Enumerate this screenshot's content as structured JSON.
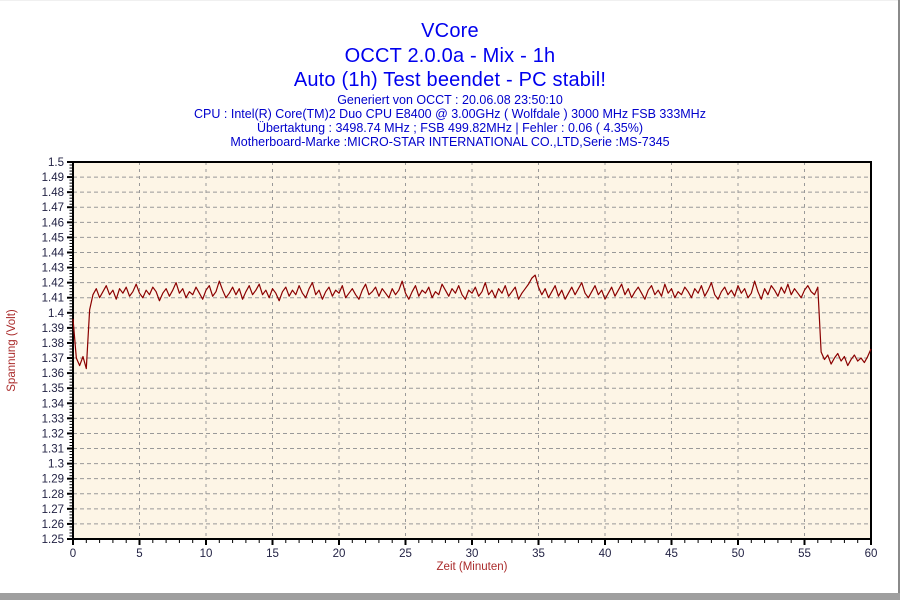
{
  "window": {
    "bottom_bar_color": "#9f9f9f",
    "right_border_color": "#8a8a8a"
  },
  "header": {
    "title": "VCore",
    "subtitle": "OCCT 2.0.0a - Mix - 1h",
    "status": "Auto (1h) Test beendet - PC stabil!",
    "title_color": "#0000ee",
    "info_color": "#0000cc",
    "info_lines": [
      "Generiert von OCCT : 20.06.08 23:50:10",
      "CPU : Intel(R) Core(TM)2 Duo CPU E8400 @ 3.00GHz ( Wolfdale ) 3000 MHz FSB 333MHz",
      "Übertaktung : 3498.74 MHz ; FSB 499.82MHz | Fehler : 0.06 ( 4.35%)",
      "Motherboard-Marke :MICRO-STAR INTERNATIONAL CO.,LTD,Serie :MS-7345"
    ]
  },
  "chart_data": {
    "type": "line",
    "title": "VCore",
    "xlabel": "Zeit (Minuten)",
    "ylabel": "Spannung (Volt)",
    "xlim": [
      0,
      60
    ],
    "ylim": [
      1.25,
      1.5
    ],
    "x_major_step": 5,
    "x_minor_step": 1,
    "y_major_step": 0.01,
    "y_minor_step": 0.002,
    "x_tick_labels": [
      "0",
      "5",
      "10",
      "15",
      "20",
      "25",
      "30",
      "35",
      "40",
      "45",
      "50",
      "55",
      "60"
    ],
    "y_tick_labels": [
      "1.5",
      "1.49",
      "1.48",
      "1.47",
      "1.46",
      "1.45",
      "1.44",
      "1.43",
      "1.42",
      "1.41",
      "1.4",
      "1.39",
      "1.38",
      "1.37",
      "1.36",
      "1.35",
      "1.34",
      "1.33",
      "1.32",
      "1.31",
      "1.3",
      "1.29",
      "1.28",
      "1.27",
      "1.26",
      "1.25"
    ],
    "grid": "dashed",
    "legend": "none",
    "plot_bg": "#fdf5e6",
    "grid_color": "#999999",
    "axis_color": "#000000",
    "line_color": "#8b0000",
    "tick_label_color": "#222244",
    "axis_label_color": "#aa2b2b",
    "series": [
      {
        "name": "VCore",
        "x_start": 0,
        "dt": 0.25,
        "values": [
          1.396,
          1.37,
          1.365,
          1.371,
          1.363,
          1.402,
          1.412,
          1.416,
          1.41,
          1.414,
          1.418,
          1.412,
          1.415,
          1.409,
          1.416,
          1.413,
          1.417,
          1.411,
          1.414,
          1.419,
          1.413,
          1.41,
          1.415,
          1.412,
          1.417,
          1.414,
          1.408,
          1.413,
          1.416,
          1.411,
          1.415,
          1.42,
          1.413,
          1.416,
          1.41,
          1.414,
          1.412,
          1.417,
          1.413,
          1.409,
          1.415,
          1.418,
          1.411,
          1.414,
          1.421,
          1.415,
          1.41,
          1.413,
          1.417,
          1.412,
          1.416,
          1.409,
          1.414,
          1.418,
          1.412,
          1.415,
          1.419,
          1.412,
          1.415,
          1.41,
          1.416,
          1.413,
          1.408,
          1.414,
          1.417,
          1.411,
          1.415,
          1.412,
          1.418,
          1.413,
          1.41,
          1.416,
          1.42,
          1.412,
          1.415,
          1.409,
          1.414,
          1.417,
          1.411,
          1.415,
          1.413,
          1.418,
          1.41,
          1.413,
          1.416,
          1.412,
          1.409,
          1.415,
          1.419,
          1.412,
          1.414,
          1.417,
          1.411,
          1.416,
          1.413,
          1.41,
          1.416,
          1.412,
          1.415,
          1.421,
          1.413,
          1.409,
          1.414,
          1.418,
          1.411,
          1.415,
          1.413,
          1.417,
          1.41,
          1.414,
          1.412,
          1.419,
          1.415,
          1.411,
          1.416,
          1.413,
          1.418,
          1.412,
          1.409,
          1.415,
          1.413,
          1.417,
          1.411,
          1.414,
          1.42,
          1.412,
          1.415,
          1.41,
          1.416,
          1.413,
          1.418,
          1.411,
          1.414,
          1.417,
          1.409,
          1.413,
          1.416,
          1.419,
          1.423,
          1.425,
          1.417,
          1.412,
          1.416,
          1.41,
          1.414,
          1.418,
          1.411,
          1.415,
          1.409,
          1.413,
          1.417,
          1.412,
          1.416,
          1.42,
          1.413,
          1.41,
          1.414,
          1.418,
          1.412,
          1.415,
          1.409,
          1.413,
          1.417,
          1.411,
          1.415,
          1.419,
          1.412,
          1.416,
          1.41,
          1.414,
          1.417,
          1.413,
          1.409,
          1.415,
          1.418,
          1.412,
          1.415,
          1.411,
          1.419,
          1.413,
          1.416,
          1.41,
          1.414,
          1.412,
          1.417,
          1.414,
          1.41,
          1.416,
          1.413,
          1.418,
          1.411,
          1.415,
          1.42,
          1.412,
          1.409,
          1.414,
          1.417,
          1.412,
          1.415,
          1.411,
          1.418,
          1.413,
          1.416,
          1.41,
          1.413,
          1.421,
          1.414,
          1.409,
          1.416,
          1.412,
          1.418,
          1.415,
          1.411,
          1.417,
          1.413,
          1.419,
          1.412,
          1.416,
          1.413,
          1.41,
          1.415,
          1.418,
          1.414,
          1.412,
          1.417,
          1.374,
          1.369,
          1.372,
          1.366,
          1.37,
          1.373,
          1.368,
          1.371,
          1.365,
          1.369,
          1.372,
          1.368,
          1.37,
          1.367,
          1.371,
          1.376
        ]
      }
    ]
  }
}
